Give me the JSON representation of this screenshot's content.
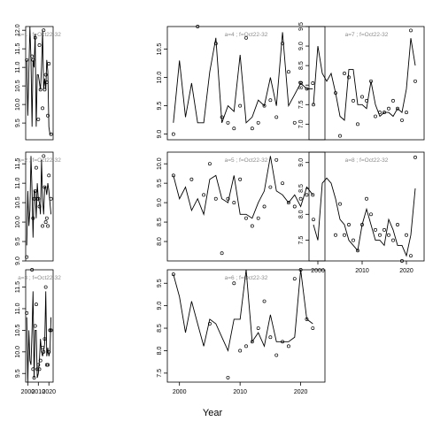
{
  "figure": {
    "xlabel": "Year",
    "colors": {
      "line": "#000000",
      "point": "#000000",
      "label": "#8c8c8c",
      "frame": "#000000"
    }
  },
  "chart_data": [
    {
      "type": "line",
      "panel": "a=1",
      "label": "a=1 ; f=Oct22-32",
      "xlim": [
        1998,
        2024
      ],
      "ylim": [
        9.05,
        12.1
      ],
      "yticks": [
        9.5,
        10.0,
        10.5,
        11.0,
        11.5,
        12.0
      ],
      "line": {
        "x": [
          1999,
          2000,
          2001,
          2002,
          2003,
          2004,
          2005,
          2006,
          2007,
          2008,
          2009,
          2010,
          2011,
          2012,
          2013,
          2014,
          2015,
          2016,
          2017,
          2018,
          2019,
          2020,
          2021,
          2022
        ],
        "y": [
          11.2,
          9.7,
          10.9,
          12.1,
          11.2,
          9.4,
          11.2,
          11.0,
          11.9,
          9.4,
          10.8,
          10.8,
          10.6,
          10.4,
          11.0,
          12.0,
          10.4,
          10.7,
          10.4,
          11.2,
          10.9,
          9.4,
          9.2,
          9.2
        ]
      },
      "points": {
        "x": [
          1999,
          2004,
          2005,
          2007,
          2010,
          2011,
          2012,
          2014,
          2015,
          2016,
          2017,
          2018,
          2019,
          2020,
          2022
        ],
        "y": [
          11.2,
          11.3,
          11.2,
          11.8,
          9.6,
          11.6,
          10.4,
          9.9,
          12.0,
          10.4,
          10.8,
          10.6,
          9.7,
          11.1,
          9.2
        ]
      }
    },
    {
      "type": "line",
      "panel": "a=2",
      "label": "a=2 ; f=Oct22-32",
      "xlim": [
        1998,
        2024
      ],
      "ylim": [
        9.0,
        11.8
      ],
      "yticks": [
        9.0,
        9.5,
        10.0,
        10.5,
        11.0,
        11.5
      ],
      "line": {
        "x": [
          1999,
          2000,
          2001,
          2002,
          2003,
          2004,
          2005,
          2006,
          2007,
          2008,
          2009,
          2010,
          2011,
          2012,
          2013,
          2014,
          2015,
          2016,
          2017,
          2018,
          2019,
          2020,
          2021,
          2022
        ],
        "y": [
          9.4,
          10.8,
          9.9,
          10.3,
          11.7,
          10.8,
          9.6,
          10.8,
          10.8,
          10.1,
          11.0,
          10.6,
          10.5,
          10.2,
          11.6,
          10.6,
          10.2,
          10.9,
          10.9,
          10.7,
          11.0,
          10.8,
          10.5,
          10.2
        ]
      },
      "points": {
        "x": [
          1999,
          2005,
          2006,
          2007,
          2008,
          2009,
          2010,
          2011,
          2014,
          2015,
          2016,
          2017,
          2018,
          2019,
          2020,
          2022
        ],
        "y": [
          9.1,
          10.1,
          10.6,
          10.8,
          11.4,
          10.6,
          10.6,
          10.4,
          9.9,
          11.7,
          10.9,
          10.0,
          10.1,
          9.9,
          11.2,
          10.6
        ]
      }
    },
    {
      "type": "line",
      "panel": "a=3",
      "label": "a=3 ; f=Oct22-32",
      "xlim": [
        1998,
        2024
      ],
      "ylim": [
        9.3,
        11.9
      ],
      "yticks": [
        9.5,
        10.0,
        10.5,
        11.0,
        11.5
      ],
      "line": {
        "x": [
          1999,
          2000,
          2001,
          2002,
          2003,
          2004,
          2005,
          2006,
          2007,
          2008,
          2009,
          2010,
          2011,
          2012,
          2013,
          2014,
          2015,
          2016,
          2017,
          2018,
          2019,
          2020,
          2021,
          2022
        ],
        "y": [
          10.8,
          9.3,
          10.5,
          9.8,
          9.7,
          10.5,
          11.4,
          9.4,
          10.5,
          10.5,
          9.4,
          9.5,
          9.8,
          10.3,
          10.0,
          9.9,
          10.0,
          10.2,
          11.4,
          9.9,
          10.1,
          9.9,
          10.0,
          10.8
        ]
      },
      "points": {
        "x": [
          1999,
          2004,
          2005,
          2006,
          2007,
          2008,
          2009,
          2010,
          2011,
          2012,
          2014,
          2015,
          2016,
          2017,
          2018,
          2019,
          2020,
          2021,
          2022
        ],
        "y": [
          10.9,
          11.9,
          9.6,
          9.4,
          10.6,
          11.1,
          9.6,
          9.7,
          9.6,
          9.8,
          10.1,
          10.0,
          10.3,
          11.5,
          9.7,
          9.7,
          10.0,
          10.5,
          10.5
        ]
      }
    },
    {
      "type": "line",
      "panel": "a=4",
      "label": "a=4 ; f=Oct22-32",
      "xlim": [
        1998,
        2024
      ],
      "ylim": [
        8.9,
        10.9
      ],
      "yticks": [
        9.0,
        9.5,
        10.0,
        10.5
      ],
      "line": {
        "x": [
          1999,
          2000,
          2001,
          2002,
          2003,
          2004,
          2005,
          2006,
          2007,
          2008,
          2009,
          2010,
          2011,
          2012,
          2013,
          2014,
          2015,
          2016,
          2017,
          2018,
          2019,
          2020,
          2021,
          2022
        ],
        "y": [
          9.2,
          10.3,
          9.3,
          9.9,
          9.2,
          9.2,
          10.1,
          10.7,
          9.2,
          9.5,
          9.4,
          10.4,
          9.2,
          9.3,
          9.6,
          9.5,
          10.0,
          9.5,
          10.8,
          9.5,
          9.7,
          9.9,
          9.8,
          9.8
        ]
      },
      "points": {
        "x": [
          1999,
          2003,
          2006,
          2007,
          2008,
          2009,
          2010,
          2011,
          2012,
          2013,
          2014,
          2015,
          2016,
          2017,
          2018,
          2019,
          2020,
          2021,
          2022
        ],
        "y": [
          9.0,
          10.9,
          10.6,
          9.3,
          9.2,
          9.1,
          9.5,
          10.7,
          9.1,
          9.2,
          9.5,
          9.6,
          9.3,
          10.6,
          10.1,
          9.2,
          9.9,
          9.8,
          9.9
        ]
      }
    },
    {
      "type": "line",
      "panel": "a=5",
      "label": "a=5 ; f=Oct22-32",
      "xlim": [
        1998,
        2024
      ],
      "ylim": [
        7.5,
        10.3
      ],
      "yticks": [
        8.0,
        8.5,
        9.0,
        9.5,
        10.0
      ],
      "line": {
        "x": [
          1999,
          2000,
          2001,
          2002,
          2003,
          2004,
          2005,
          2006,
          2007,
          2008,
          2009,
          2010,
          2011,
          2012,
          2013,
          2014,
          2015,
          2016,
          2017,
          2018,
          2019,
          2020,
          2021,
          2022
        ],
        "y": [
          9.7,
          9.1,
          9.4,
          8.8,
          9.1,
          8.7,
          9.6,
          9.7,
          9.1,
          9.0,
          9.7,
          8.7,
          8.7,
          8.6,
          9.0,
          9.3,
          10.2,
          9.3,
          9.2,
          9.0,
          9.2,
          8.9,
          9.4,
          9.2
        ]
      },
      "points": {
        "x": [
          1999,
          2002,
          2004,
          2005,
          2006,
          2007,
          2008,
          2009,
          2010,
          2011,
          2012,
          2013,
          2014,
          2015,
          2016,
          2017,
          2018,
          2019,
          2020,
          2021,
          2022
        ],
        "y": [
          9.7,
          9.6,
          9.2,
          10.0,
          9.1,
          7.7,
          9.1,
          9.0,
          9.6,
          8.6,
          8.4,
          8.6,
          8.9,
          9.4,
          10.1,
          9.5,
          9.0,
          8.9,
          9.1,
          9.2,
          9.2
        ]
      }
    },
    {
      "type": "line",
      "panel": "a=6",
      "label": "a=6 ; f=Oct22-32",
      "xlim": [
        1998,
        2024
      ],
      "ylim": [
        7.3,
        9.8
      ],
      "yticks": [
        7.5,
        8.0,
        8.5,
        9.0,
        9.5
      ],
      "line": {
        "x": [
          1999,
          2000,
          2001,
          2002,
          2003,
          2004,
          2005,
          2006,
          2007,
          2008,
          2009,
          2010,
          2011,
          2012,
          2013,
          2014,
          2015,
          2016,
          2017,
          2018,
          2019,
          2020,
          2021,
          2022
        ],
        "y": [
          9.7,
          9.2,
          8.4,
          9.1,
          8.6,
          8.1,
          8.7,
          8.6,
          8.3,
          8.0,
          8.7,
          8.7,
          9.8,
          8.2,
          8.4,
          8.1,
          8.8,
          8.2,
          8.2,
          8.2,
          8.3,
          9.8,
          8.7,
          8.6
        ]
      },
      "points": {
        "x": [
          1999,
          2005,
          2008,
          2009,
          2010,
          2011,
          2012,
          2013,
          2014,
          2015,
          2016,
          2017,
          2018,
          2019,
          2020,
          2021,
          2022
        ],
        "y": [
          9.7,
          8.6,
          7.4,
          9.5,
          8.0,
          8.1,
          8.2,
          8.5,
          9.1,
          8.3,
          7.9,
          8.2,
          8.1,
          9.6,
          9.8,
          8.7,
          8.5
        ]
      }
    },
    {
      "type": "line",
      "panel": "a=7",
      "label": "a=7 ; f=Oct22-32",
      "xlim": [
        1998,
        2024
      ],
      "ylim": [
        6.6,
        9.5
      ],
      "yticks": [
        7.0,
        7.5,
        8.0,
        8.5,
        9.0,
        9.5
      ],
      "line": {
        "x": [
          1999,
          2000,
          2001,
          2002,
          2003,
          2004,
          2005,
          2006,
          2007,
          2008,
          2009,
          2010,
          2011,
          2012,
          2013,
          2014,
          2015,
          2016,
          2017,
          2018,
          2019,
          2020,
          2021,
          2022
        ],
        "y": [
          7.5,
          9.0,
          8.3,
          8.1,
          8.3,
          7.8,
          7.2,
          7.1,
          8.4,
          8.4,
          7.5,
          7.5,
          7.4,
          8.1,
          7.5,
          7.2,
          7.3,
          7.3,
          7.2,
          7.4,
          7.3,
          7.9,
          9.2,
          8.5
        ]
      },
      "points": {
        "x": [
          1999,
          2004,
          2005,
          2006,
          2007,
          2008,
          2009,
          2010,
          2011,
          2012,
          2013,
          2014,
          2015,
          2016,
          2017,
          2018,
          2019,
          2020,
          2021,
          2022
        ],
        "y": [
          7.5,
          7.8,
          6.7,
          8.3,
          8.2,
          7.6,
          7.0,
          7.7,
          7.6,
          8.1,
          7.2,
          7.3,
          7.3,
          7.4,
          7.6,
          7.4,
          7.1,
          7.3,
          9.4,
          8.1
        ]
      }
    },
    {
      "type": "line",
      "panel": "a=8",
      "label": "a=8 ; f=Oct22-32",
      "xlim": [
        1998,
        2024
      ],
      "ylim": [
        7.1,
        9.2
      ],
      "yticks": [
        7.5,
        8.0,
        8.5,
        9.0
      ],
      "line": {
        "x": [
          1999,
          2000,
          2001,
          2002,
          2003,
          2004,
          2005,
          2006,
          2007,
          2008,
          2009,
          2010,
          2011,
          2012,
          2013,
          2014,
          2015,
          2016,
          2017,
          2018,
          2019,
          2020,
          2021,
          2022
        ],
        "y": [
          7.8,
          7.5,
          8.6,
          8.7,
          8.6,
          8.3,
          7.9,
          7.8,
          7.5,
          7.4,
          7.3,
          7.8,
          8.1,
          7.8,
          7.5,
          7.5,
          7.4,
          7.9,
          7.7,
          7.4,
          7.4,
          7.2,
          7.6,
          8.5
        ]
      },
      "points": {
        "x": [
          1999,
          2004,
          2005,
          2006,
          2007,
          2008,
          2009,
          2010,
          2011,
          2012,
          2013,
          2014,
          2015,
          2016,
          2017,
          2018,
          2019,
          2020,
          2021,
          2022
        ],
        "y": [
          7.9,
          7.6,
          8.2,
          7.6,
          7.8,
          7.5,
          7.3,
          7.8,
          8.3,
          8.0,
          7.7,
          7.6,
          7.7,
          7.6,
          7.5,
          7.8,
          7.1,
          7.6,
          7.2,
          9.1
        ]
      }
    }
  ]
}
